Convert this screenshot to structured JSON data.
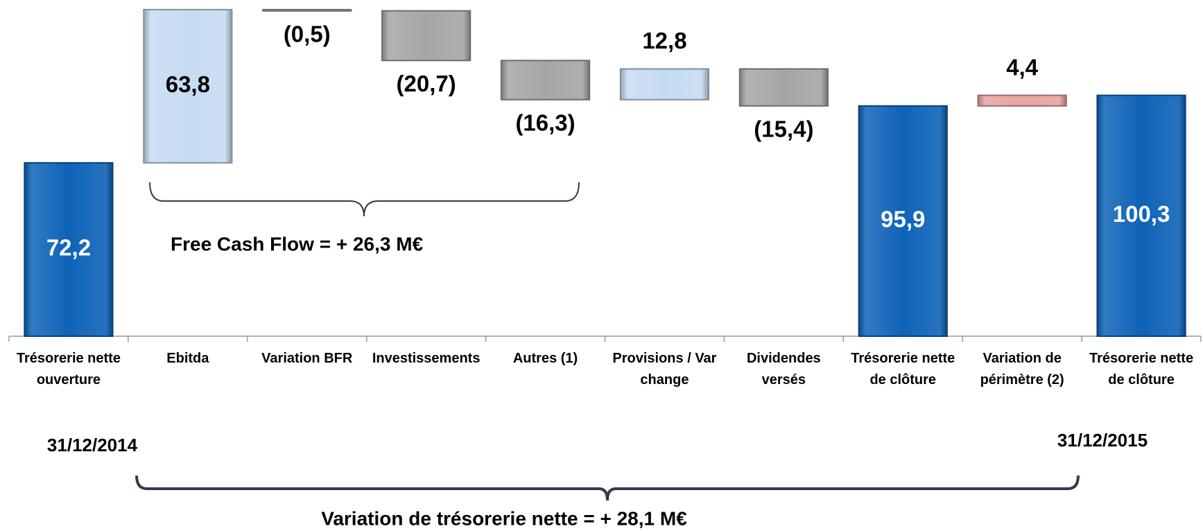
{
  "chart_data": {
    "type": "waterfall",
    "categories": [
      "Trésorerie nette\nouverture",
      "Ebitda",
      "Variation BFR",
      "Investissements",
      "Autres (1)",
      "Provisions / Var\nchange",
      "Dividendes\nversés",
      "Trésorerie nette\nde clôture",
      "Variation de\npérimètre  (2)",
      "Trésorerie nette\nde clôture"
    ],
    "values": [
      72.2,
      63.8,
      -0.5,
      -20.7,
      -16.3,
      12.8,
      -15.4,
      95.9,
      4.4,
      100.3
    ],
    "value_labels": [
      "72,2",
      "63,8",
      "(0,5)",
      "(20,7)",
      "(16,3)",
      "12,8",
      "(15,4)",
      "95,9",
      "4,4",
      "100,3"
    ],
    "totals": [
      0,
      7,
      9
    ],
    "colors": [
      "#0e63b8",
      "#c6dbf1",
      "#b0b0b0",
      "#a6a6a6",
      "#a6a6a6",
      "#c6dbf1",
      "#a6a6a6",
      "#0e63b8",
      "#e9a3a3",
      "#0e63b8"
    ],
    "ylim": [
      0,
      140
    ],
    "annotations": [
      "Free Cash Flow =  + 26,3 M€",
      "Variation  de trésorerie nette =  + 28,1 M€",
      "31/12/2014",
      "31/12/2015"
    ]
  }
}
